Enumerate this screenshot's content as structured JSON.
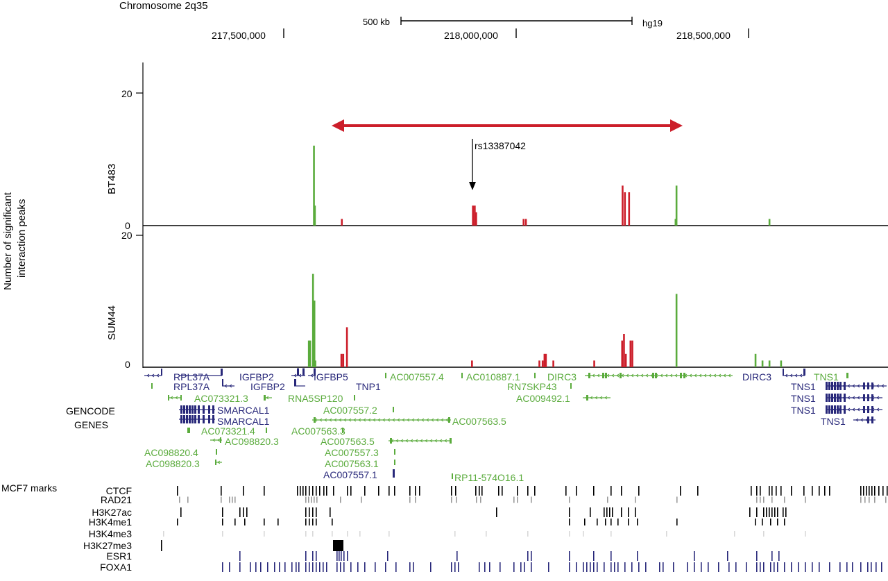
{
  "header": {
    "chromosome": "Chromosome 2q35",
    "scale_label": "500 kb",
    "assembly": "hg19",
    "coordinates": [
      "217,500,000",
      "218,000,000",
      "218,500,000"
    ]
  },
  "y_axis": {
    "label_line1": "Number of  significant",
    "label_line2": "interaction peaks",
    "top_tick": "20",
    "zero_tick": "0",
    "bt483_top_tick": "20",
    "bt483_zero_tick": "0"
  },
  "panels": {
    "bt483": {
      "name": "BT483"
    },
    "sum44": {
      "name": "SUM44"
    }
  },
  "snp": {
    "label": "rs13387042"
  },
  "genes": {
    "section_title_line1": "GENCODE",
    "section_title_line2": "GENES",
    "labels": [
      {
        "text": "RPL37A",
        "color": "navy"
      },
      {
        "text": "IGFBP2",
        "color": "navy"
      },
      {
        "text": "IGFBP5",
        "color": "navy"
      },
      {
        "text": "AC007557.4",
        "color": "green"
      },
      {
        "text": "AC010887.1",
        "color": "green"
      },
      {
        "text": "DIRC3",
        "color": "green"
      },
      {
        "text": "DIRC3",
        "color": "navy"
      },
      {
        "text": "TNS1",
        "color": "green"
      },
      {
        "text": "RPL37A",
        "color": "navy"
      },
      {
        "text": "IGFBP2",
        "color": "navy"
      },
      {
        "text": "TNP1",
        "color": "navy"
      },
      {
        "text": "RN7SKP43",
        "color": "green"
      },
      {
        "text": "TNS1",
        "color": "navy"
      },
      {
        "text": "AC073321.3",
        "color": "green"
      },
      {
        "text": "RNA5SP120",
        "color": "green"
      },
      {
        "text": "AC009492.1",
        "color": "green"
      },
      {
        "text": "TNS1",
        "color": "navy"
      },
      {
        "text": "SMARCAL1",
        "color": "navy"
      },
      {
        "text": "AC007557.2",
        "color": "green"
      },
      {
        "text": "TNS1",
        "color": "navy"
      },
      {
        "text": "SMARCAL1",
        "color": "navy"
      },
      {
        "text": "AC007563.5",
        "color": "green"
      },
      {
        "text": "TNS1",
        "color": "navy"
      },
      {
        "text": "AC073321.4",
        "color": "green"
      },
      {
        "text": "AC007563.3",
        "color": "green"
      },
      {
        "text": "AC098820.3",
        "color": "green"
      },
      {
        "text": "AC007563.5",
        "color": "green"
      },
      {
        "text": "AC098820.4",
        "color": "green"
      },
      {
        "text": "AC007557.3",
        "color": "green"
      },
      {
        "text": "AC098820.3",
        "color": "green"
      },
      {
        "text": "AC007563.1",
        "color": "green"
      },
      {
        "text": "AC007557.1",
        "color": "navy"
      },
      {
        "text": "RP11-574O16.1",
        "color": "green"
      }
    ]
  },
  "marks": {
    "section_title": "MCF7 marks",
    "tracks": [
      {
        "name": "CTCF",
        "color": "black"
      },
      {
        "name": "RAD21",
        "color": "gray"
      },
      {
        "name": "H3K27ac",
        "color": "black"
      },
      {
        "name": "H3K4me1",
        "color": "black"
      },
      {
        "name": "H3K4me3",
        "color": "lightgray"
      },
      {
        "name": "H3K27me3",
        "color": "black"
      },
      {
        "name": "ESR1",
        "color": "navy"
      },
      {
        "name": "FOXA1",
        "color": "navy"
      }
    ]
  },
  "colors": {
    "red": "#cc1e2a",
    "green": "#5aab3c",
    "navy": "#28287a",
    "black": "#000000",
    "gray": "#9a9a9a",
    "lightgray": "#d8d8d8"
  },
  "chart_data": {
    "type": "bar",
    "x_unit": "chromosome 2 position (hg19)",
    "ylim": [
      0,
      20
    ],
    "interaction_region": [
      217610000,
      218350000
    ],
    "snp_position": 217910000,
    "series": [
      {
        "panel": "BT483",
        "green": [
          [
            217565000,
            12
          ],
          [
            217567000,
            3
          ],
          [
            218345000,
            6
          ],
          [
            218343000,
            1
          ],
          [
            218545000,
            1
          ]
        ],
        "red": [
          [
            217625000,
            1
          ],
          [
            217907000,
            3
          ],
          [
            217911000,
            3
          ],
          [
            217914000,
            2
          ],
          [
            218016000,
            1
          ],
          [
            218021000,
            1
          ],
          [
            218229000,
            6
          ],
          [
            218234000,
            5
          ],
          [
            218243000,
            5
          ]
        ]
      },
      {
        "panel": "SUM44",
        "green": [
          [
            217554000,
            4
          ],
          [
            217557000,
            4
          ],
          [
            217563000,
            14
          ],
          [
            217566000,
            10
          ],
          [
            217568000,
            1
          ],
          [
            218345000,
            11
          ],
          [
            218515000,
            2
          ],
          [
            218530000,
            1
          ],
          [
            218545000,
            1
          ],
          [
            218570000,
            1
          ]
        ],
        "red": [
          [
            217624000,
            2
          ],
          [
            217628000,
            2
          ],
          [
            217636000,
            6
          ],
          [
            217905000,
            1
          ],
          [
            218050000,
            1
          ],
          [
            218057000,
            1
          ],
          [
            218061000,
            2
          ],
          [
            218064000,
            2
          ],
          [
            218080000,
            1
          ],
          [
            218168000,
            1
          ],
          [
            218228000,
            4
          ],
          [
            218232000,
            5
          ],
          [
            218236000,
            2
          ],
          [
            218246000,
            4
          ],
          [
            218250000,
            4
          ]
        ]
      }
    ]
  }
}
